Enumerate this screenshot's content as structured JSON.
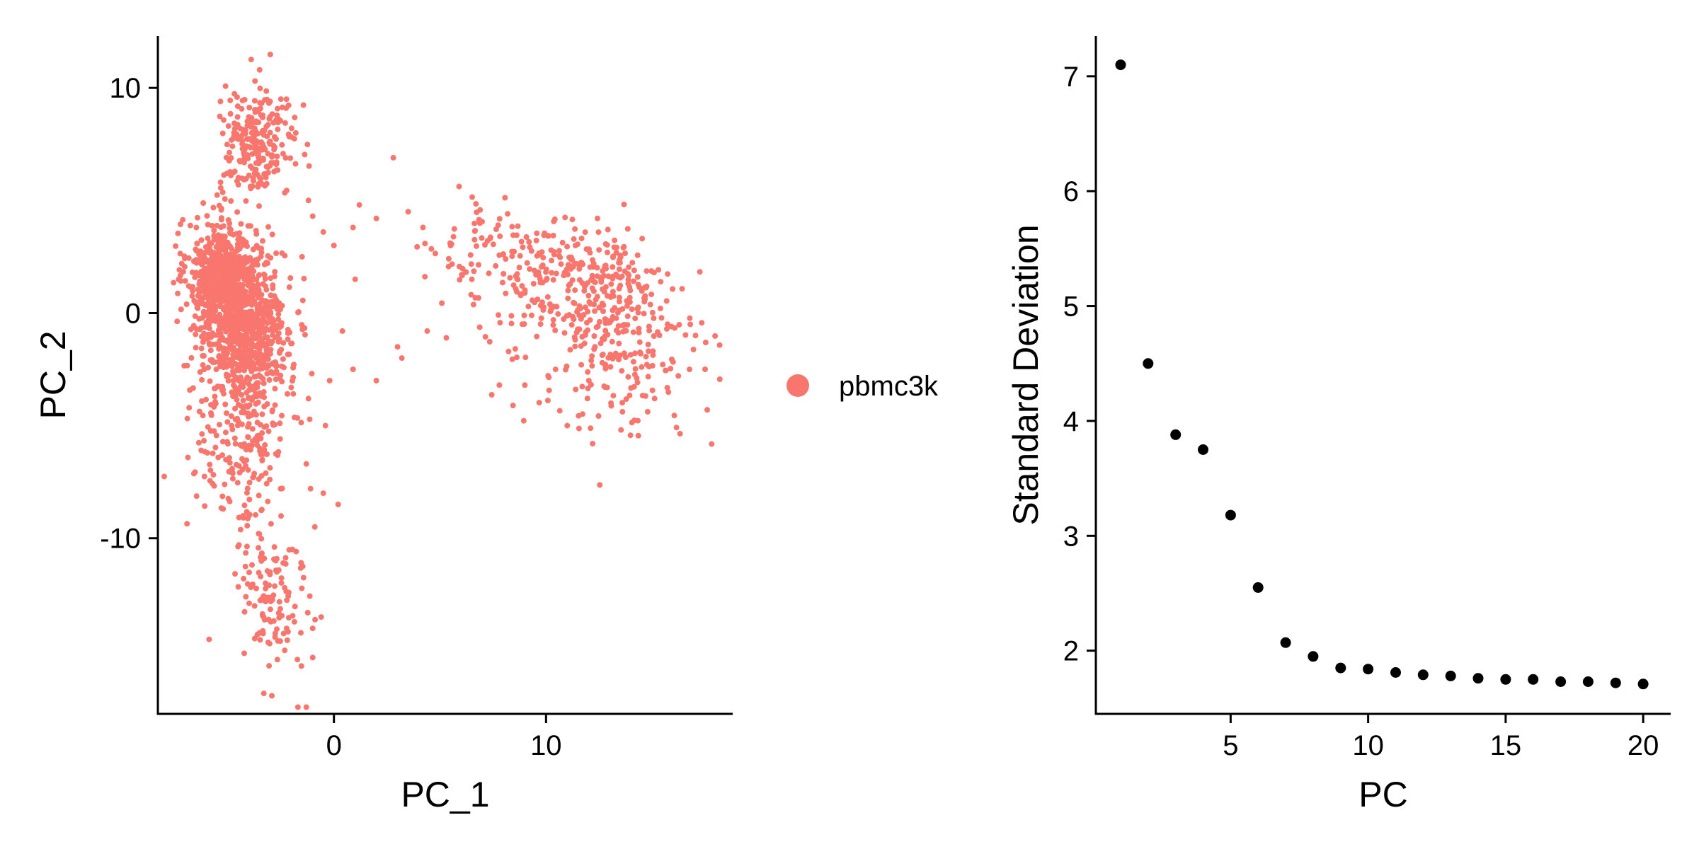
{
  "colors": {
    "cells": "#F8766D",
    "elbow_points": "#000000"
  },
  "chart_data": [
    {
      "type": "scatter",
      "title": "",
      "xlabel": "PC_1",
      "ylabel": "PC_2",
      "xlim": [
        -8.3,
        18.8
      ],
      "ylim": [
        -17.8,
        12.3
      ],
      "xticks": [
        0,
        10
      ],
      "yticks": [
        -10,
        0,
        10
      ],
      "xtick_labels": [
        "0",
        "10"
      ],
      "ytick_labels": [
        "-10",
        "0",
        "10"
      ],
      "grid": false,
      "legend": {
        "position": "right",
        "entries": [
          {
            "label": "pbmc3k",
            "color": "#F8766D"
          }
        ]
      },
      "series": [
        {
          "name": "pbmc3k",
          "clusters": [
            {
              "center": [
                -5.3,
                1.8
              ],
              "spread": [
                0.8,
                1.1
              ],
              "count": 480
            },
            {
              "center": [
                -4.3,
                0.2
              ],
              "spread": [
                1.0,
                1.3
              ],
              "count": 520
            },
            {
              "center": [
                -3.8,
                -1.8
              ],
              "spread": [
                0.9,
                1.2
              ],
              "count": 250
            },
            {
              "center": [
                -3.6,
                7.5
              ],
              "spread": [
                0.9,
                1.2
              ],
              "count": 240
            },
            {
              "center": [
                -4.2,
                -5.5
              ],
              "spread": [
                1.0,
                2.0
              ],
              "count": 200
            },
            {
              "center": [
                -3.0,
                -12.5
              ],
              "spread": [
                0.9,
                2.0
              ],
              "count": 120
            },
            {
              "center": [
                11.5,
                1.2
              ],
              "spread": [
                2.2,
                1.4
              ],
              "count": 260
            },
            {
              "center": [
                13.5,
                -1.8
              ],
              "spread": [
                2.0,
                1.8
              ],
              "count": 200
            },
            {
              "center": [
                8.0,
                2.8
              ],
              "spread": [
                1.6,
                1.1
              ],
              "count": 80
            },
            {
              "center": [
                -6.0,
                -2.0
              ],
              "spread": [
                0.7,
                3.0
              ],
              "count": 80
            }
          ],
          "scattered_points": [
            [
              1.2,
              4.8
            ],
            [
              2.8,
              6.9
            ],
            [
              0.9,
              3.8
            ],
            [
              2.0,
              4.2
            ],
            [
              3.5,
              4.5
            ],
            [
              4.2,
              3.8
            ],
            [
              1.0,
              1.5
            ],
            [
              0.4,
              -0.8
            ],
            [
              -1.0,
              4.3
            ],
            [
              -1.5,
              2.5
            ],
            [
              -0.5,
              3.6
            ],
            [
              0.0,
              3.0
            ],
            [
              3.0,
              -1.5
            ],
            [
              3.2,
              -2.0
            ],
            [
              4.4,
              -0.8
            ],
            [
              5.3,
              -1.1
            ],
            [
              0.9,
              -2.5
            ],
            [
              -0.4,
              -5.0
            ],
            [
              -0.5,
              -8.0
            ],
            [
              0.2,
              -8.5
            ],
            [
              -0.9,
              -9.5
            ],
            [
              -0.6,
              -13.5
            ],
            [
              -1.0,
              -14.0
            ],
            [
              -1.0,
              -15.3
            ],
            [
              -1.3,
              -17.5
            ],
            [
              -1.7,
              -17.5
            ],
            [
              -0.2,
              -3.0
            ],
            [
              2.0,
              -3.0
            ],
            [
              5.5,
              3.0
            ],
            [
              6.5,
              1.5
            ],
            [
              9.0,
              -3.2
            ],
            [
              11.0,
              -5.0
            ],
            [
              12.2,
              -5.8
            ],
            [
              7.8,
              -3.2
            ],
            [
              17.6,
              -4.3
            ],
            [
              17.5,
              -2.5
            ],
            [
              16.8,
              -0.5
            ],
            [
              -1.2,
              -3.8
            ],
            [
              -1.1,
              -7.8
            ],
            [
              -1.3,
              -6.7
            ],
            [
              -3.5,
              10.8
            ],
            [
              -2.5,
              9.5
            ],
            [
              -1.8,
              8.0
            ],
            [
              -1.2,
              5.0
            ]
          ]
        }
      ]
    },
    {
      "type": "scatter",
      "title": "",
      "xlabel": "PC",
      "ylabel": "Standard Deviation",
      "xlim": [
        0.1,
        21.0
      ],
      "ylim": [
        1.45,
        7.35
      ],
      "xticks": [
        5,
        10,
        15,
        20
      ],
      "yticks": [
        2,
        3,
        4,
        5,
        6,
        7
      ],
      "xtick_labels": [
        "5",
        "10",
        "15",
        "20"
      ],
      "ytick_labels": [
        "2",
        "3",
        "4",
        "5",
        "6",
        "7"
      ],
      "grid": false,
      "x": [
        1,
        2,
        3,
        4,
        5,
        6,
        7,
        8,
        9,
        10,
        11,
        12,
        13,
        14,
        15,
        16,
        17,
        18,
        19,
        20
      ],
      "y": [
        7.1,
        4.5,
        3.88,
        3.75,
        3.18,
        2.55,
        2.07,
        1.95,
        1.85,
        1.84,
        1.81,
        1.79,
        1.78,
        1.76,
        1.75,
        1.75,
        1.73,
        1.73,
        1.72,
        1.71
      ]
    }
  ]
}
